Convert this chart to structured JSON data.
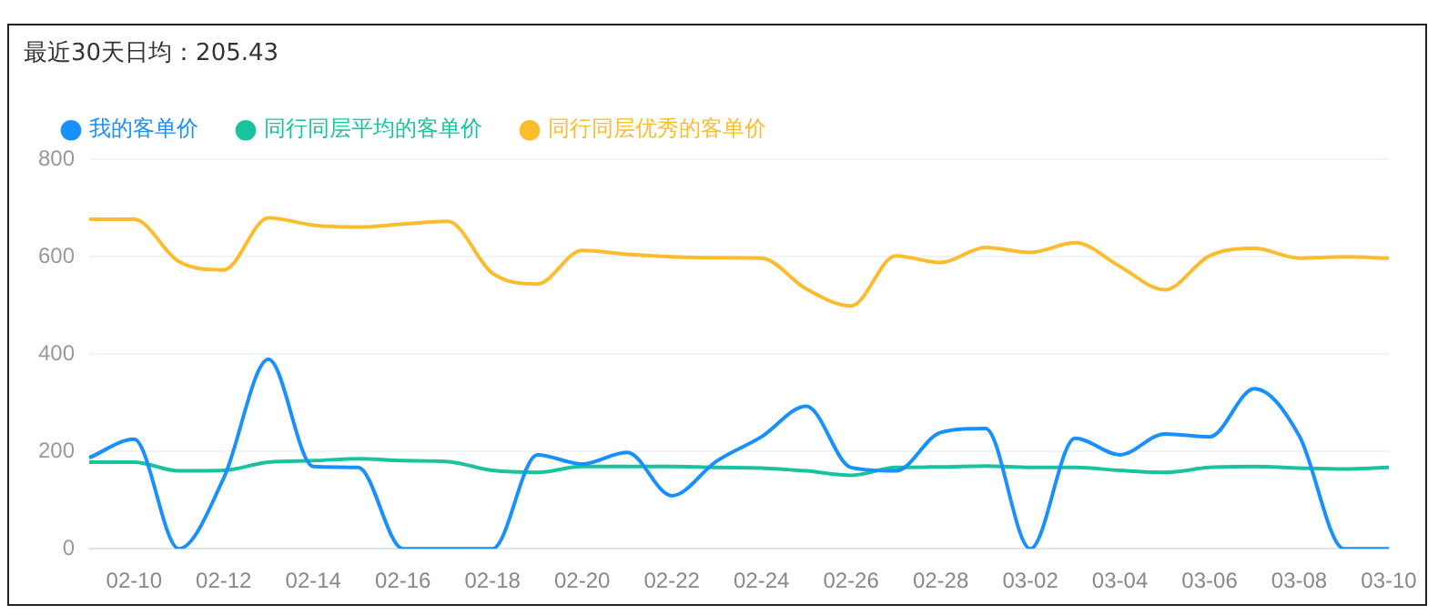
{
  "chart_data": {
    "type": "line",
    "title": "最近30天日均：205.43",
    "categories": [
      null,
      "02-10",
      null,
      "02-12",
      null,
      "02-14",
      null,
      "02-16",
      null,
      "02-18",
      null,
      "02-20",
      null,
      "02-22",
      null,
      "02-24",
      null,
      "02-26",
      null,
      "02-28",
      null,
      "03-02",
      null,
      "03-04",
      null,
      "03-06",
      null,
      "03-08",
      null,
      "03-10"
    ],
    "series": [
      {
        "name": "我的客单价",
        "color": "#1890ff",
        "values": [
          187,
          225,
          0,
          145,
          389,
          169,
          167,
          0,
          0,
          0,
          193,
          174,
          198,
          109,
          180,
          230,
          293,
          167,
          160,
          239,
          247,
          0,
          227,
          193,
          236,
          230,
          329,
          232,
          0,
          0
        ]
      },
      {
        "name": "同行同层平均的客单价",
        "color": "#19c39f",
        "values": [
          178,
          178,
          160,
          161,
          178,
          181,
          185,
          181,
          179,
          161,
          157,
          169,
          169,
          169,
          167,
          166,
          160,
          151,
          167,
          168,
          170,
          167,
          167,
          161,
          157,
          167,
          169,
          166,
          164,
          167
        ]
      },
      {
        "name": "同行同层优秀的客单价",
        "color": "#fbbd2d",
        "values": [
          677,
          677,
          590,
          573,
          680,
          665,
          661,
          667,
          673,
          566,
          544,
          613,
          605,
          600,
          598,
          597,
          534,
          499,
          602,
          588,
          619,
          609,
          629,
          580,
          532,
          602,
          617,
          597,
          600,
          597
        ]
      }
    ],
    "ylim": [
      0,
      800
    ],
    "yticks": [
      0,
      200,
      400,
      600,
      800
    ],
    "grid": "y",
    "legend": "top left",
    "marker": "none",
    "line_style": "solid"
  }
}
